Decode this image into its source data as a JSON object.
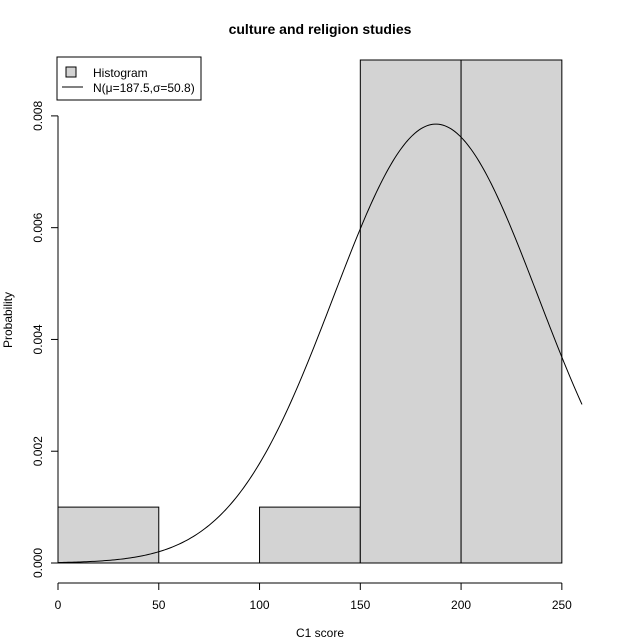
{
  "chart_data": {
    "type": "bar",
    "title": "culture and religion studies",
    "xlabel": "C1 score",
    "ylabel": "Probability",
    "xlim": [
      0,
      260
    ],
    "ylim": [
      0,
      0.009
    ],
    "x_ticks": [
      "0",
      "50",
      "100",
      "150",
      "200",
      "250"
    ],
    "y_ticks": [
      "0.000",
      "0.002",
      "0.004",
      "0.006",
      "0.008"
    ],
    "histogram": {
      "name": "Histogram",
      "bins": [
        {
          "start": 0,
          "end": 50,
          "density": 0.001
        },
        {
          "start": 50,
          "end": 100,
          "density": 0.0
        },
        {
          "start": 100,
          "end": 150,
          "density": 0.001
        },
        {
          "start": 150,
          "end": 200,
          "density": 0.009
        },
        {
          "start": 200,
          "end": 250,
          "density": 0.009
        }
      ]
    },
    "normal_curve": {
      "name": "N(μ=187.5,σ=50.8)",
      "mu": 187.5,
      "sigma": 50.8
    },
    "legend": {
      "position": "top-left",
      "entries": [
        "Histogram",
        "N(μ=187.5,σ=50.8)"
      ]
    },
    "colors": {
      "bar_fill": "#d3d3d3",
      "stroke": "#000000"
    }
  }
}
